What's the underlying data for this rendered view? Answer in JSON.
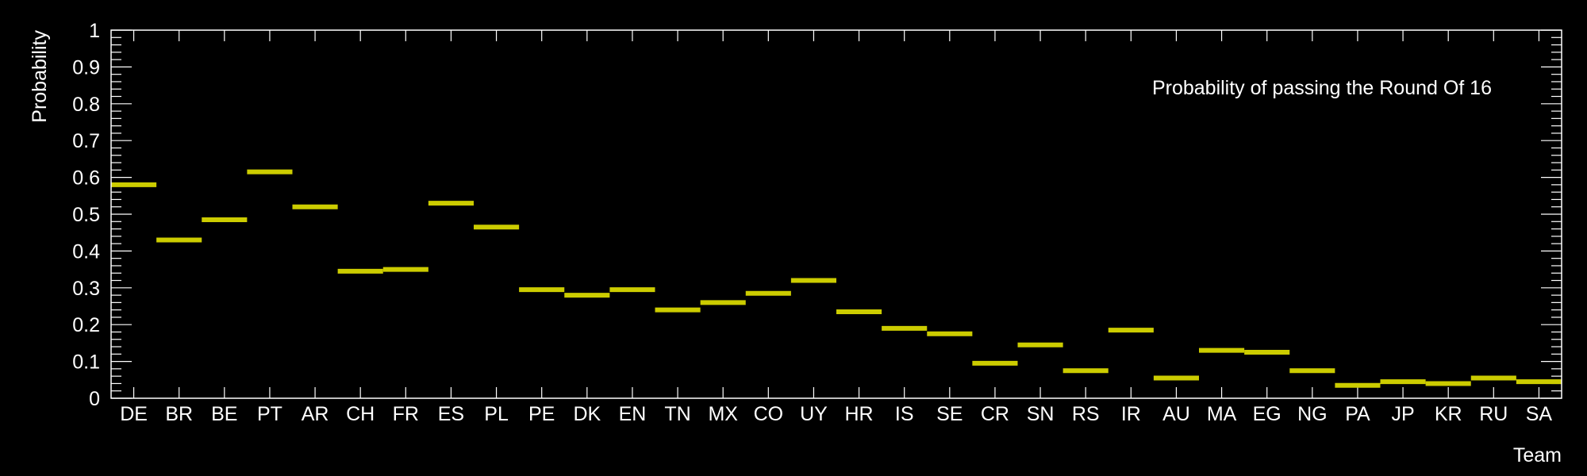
{
  "chart_data": {
    "type": "step",
    "title": "Probability of passing the Round Of 16",
    "xlabel": "Team",
    "ylabel": "Probability",
    "ylim": [
      0,
      1
    ],
    "yticks": [
      "0",
      "0.1",
      "0.2",
      "0.3",
      "0.4",
      "0.5",
      "0.6",
      "0.7",
      "0.8",
      "0.9",
      "1"
    ],
    "grid": false,
    "legend_position": "top-right",
    "color": "#cccc00",
    "categories": [
      "DE",
      "BR",
      "BE",
      "PT",
      "AR",
      "CH",
      "FR",
      "ES",
      "PL",
      "PE",
      "DK",
      "EN",
      "TN",
      "MX",
      "CO",
      "UY",
      "HR",
      "IS",
      "SE",
      "CR",
      "SN",
      "RS",
      "IR",
      "AU",
      "MA",
      "EG",
      "NG",
      "PA",
      "JP",
      "KR",
      "RU",
      "SA"
    ],
    "values": [
      0.58,
      0.43,
      0.485,
      0.615,
      0.52,
      0.345,
      0.35,
      0.53,
      0.465,
      0.295,
      0.28,
      0.295,
      0.24,
      0.26,
      0.285,
      0.32,
      0.235,
      0.19,
      0.175,
      0.095,
      0.145,
      0.075,
      0.185,
      0.055,
      0.13,
      0.125,
      0.075,
      0.035,
      0.045,
      0.04,
      0.055,
      0.045
    ]
  }
}
